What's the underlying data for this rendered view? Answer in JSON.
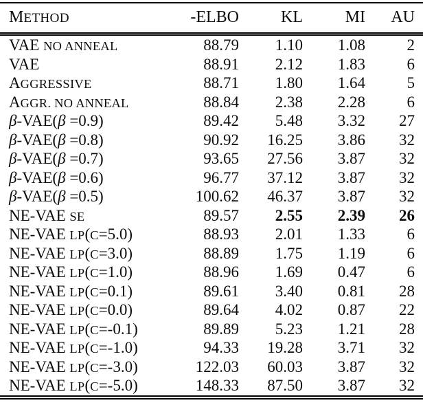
{
  "colors": {
    "text": "#0d0d0d",
    "rule": "#000000",
    "background": "#ffffff"
  },
  "table": {
    "columns": [
      {
        "key": "method",
        "align": "left",
        "label_segments": [
          {
            "t": "M",
            "s": "p"
          },
          {
            "t": "ETHOD",
            "s": "sc"
          }
        ]
      },
      {
        "key": "elbo",
        "label": "-ELBO",
        "align": "right"
      },
      {
        "key": "kl",
        "label": "KL",
        "align": "right"
      },
      {
        "key": "mi",
        "label": "MI",
        "align": "right"
      },
      {
        "key": "au",
        "label": "AU",
        "align": "right"
      }
    ],
    "rows": [
      {
        "method": [
          {
            "t": "VAE ",
            "s": "p"
          },
          {
            "t": "NO ANNEAL",
            "s": "sc"
          }
        ],
        "elbo": "88.79",
        "kl": "1.10",
        "mi": "1.08",
        "au": "2",
        "bold": []
      },
      {
        "method": [
          {
            "t": "VAE",
            "s": "p"
          }
        ],
        "elbo": "88.91",
        "kl": "2.12",
        "mi": "1.83",
        "au": "6",
        "bold": []
      },
      {
        "method": [
          {
            "t": "A",
            "s": "p"
          },
          {
            "t": "GGRESSIVE",
            "s": "sc"
          }
        ],
        "elbo": "88.71",
        "kl": "1.80",
        "mi": "1.64",
        "au": "5",
        "bold": []
      },
      {
        "method": [
          {
            "t": "A",
            "s": "p"
          },
          {
            "t": "GGR. NO ANNEAL",
            "s": "sc"
          }
        ],
        "elbo": "88.84",
        "kl": "2.38",
        "mi": "2.28",
        "au": "6",
        "bold": []
      },
      {
        "method": [
          {
            "t": "β",
            "s": "it"
          },
          {
            "t": "-VAE(",
            "s": "p"
          },
          {
            "t": "β",
            "s": "it"
          },
          {
            "t": " =0.9)",
            "s": "p"
          }
        ],
        "elbo": "89.42",
        "kl": "5.48",
        "mi": "3.32",
        "au": "27",
        "bold": []
      },
      {
        "method": [
          {
            "t": "β",
            "s": "it"
          },
          {
            "t": "-VAE(",
            "s": "p"
          },
          {
            "t": "β",
            "s": "it"
          },
          {
            "t": " =0.8)",
            "s": "p"
          }
        ],
        "elbo": "90.92",
        "kl": "16.25",
        "mi": "3.86",
        "au": "32",
        "bold": []
      },
      {
        "method": [
          {
            "t": "β",
            "s": "it"
          },
          {
            "t": "-VAE(",
            "s": "p"
          },
          {
            "t": "β",
            "s": "it"
          },
          {
            "t": " =0.7)",
            "s": "p"
          }
        ],
        "elbo": "93.65",
        "kl": "27.56",
        "mi": "3.87",
        "au": "32",
        "bold": []
      },
      {
        "method": [
          {
            "t": "β",
            "s": "it"
          },
          {
            "t": "-VAE(",
            "s": "p"
          },
          {
            "t": "β",
            "s": "it"
          },
          {
            "t": " =0.6)",
            "s": "p"
          }
        ],
        "elbo": "96.77",
        "kl": "37.12",
        "mi": "3.87",
        "au": "32",
        "bold": []
      },
      {
        "method": [
          {
            "t": "β",
            "s": "it"
          },
          {
            "t": "-VAE(",
            "s": "p"
          },
          {
            "t": "β",
            "s": "it"
          },
          {
            "t": " =0.5)",
            "s": "p"
          }
        ],
        "elbo": "100.62",
        "kl": "46.37",
        "mi": "3.87",
        "au": "32",
        "bold": []
      },
      {
        "method": [
          {
            "t": "NE-VAE ",
            "s": "p"
          },
          {
            "t": "SE",
            "s": "sc"
          }
        ],
        "elbo": "89.57",
        "kl": "2.55",
        "mi": "2.39",
        "au": "26",
        "bold": [
          "kl",
          "mi",
          "au"
        ]
      },
      {
        "method": [
          {
            "t": "NE-VAE ",
            "s": "p"
          },
          {
            "t": "LP",
            "s": "sc"
          },
          {
            "t": "(",
            "s": "p"
          },
          {
            "t": "C",
            "s": "sc"
          },
          {
            "t": "=5.0)",
            "s": "p"
          }
        ],
        "elbo": "88.93",
        "kl": "2.01",
        "mi": "1.33",
        "au": "6",
        "bold": []
      },
      {
        "method": [
          {
            "t": "NE-VAE ",
            "s": "p"
          },
          {
            "t": "LP",
            "s": "sc"
          },
          {
            "t": "(",
            "s": "p"
          },
          {
            "t": "C",
            "s": "sc"
          },
          {
            "t": "=3.0)",
            "s": "p"
          }
        ],
        "elbo": "88.89",
        "kl": "1.75",
        "mi": "1.19",
        "au": "6",
        "bold": []
      },
      {
        "method": [
          {
            "t": "NE-VAE ",
            "s": "p"
          },
          {
            "t": "LP",
            "s": "sc"
          },
          {
            "t": "(",
            "s": "p"
          },
          {
            "t": "C",
            "s": "sc"
          },
          {
            "t": "=1.0)",
            "s": "p"
          }
        ],
        "elbo": "88.96",
        "kl": "1.69",
        "mi": "0.47",
        "au": "6",
        "bold": []
      },
      {
        "method": [
          {
            "t": "NE-VAE ",
            "s": "p"
          },
          {
            "t": "LP",
            "s": "sc"
          },
          {
            "t": "(",
            "s": "p"
          },
          {
            "t": "C",
            "s": "sc"
          },
          {
            "t": "=0.1)",
            "s": "p"
          }
        ],
        "elbo": "89.61",
        "kl": "3.40",
        "mi": "0.81",
        "au": "28",
        "bold": []
      },
      {
        "method": [
          {
            "t": "NE-VAE ",
            "s": "p"
          },
          {
            "t": "LP",
            "s": "sc"
          },
          {
            "t": "(",
            "s": "p"
          },
          {
            "t": "C",
            "s": "sc"
          },
          {
            "t": "=0.0)",
            "s": "p"
          }
        ],
        "elbo": "89.64",
        "kl": "4.02",
        "mi": "0.87",
        "au": "22",
        "bold": []
      },
      {
        "method": [
          {
            "t": "NE-VAE ",
            "s": "p"
          },
          {
            "t": "LP",
            "s": "sc"
          },
          {
            "t": "(",
            "s": "p"
          },
          {
            "t": "C",
            "s": "sc"
          },
          {
            "t": "=-0.1)",
            "s": "p"
          }
        ],
        "elbo": "89.89",
        "kl": "5.23",
        "mi": "1.21",
        "au": "28",
        "bold": []
      },
      {
        "method": [
          {
            "t": "NE-VAE ",
            "s": "p"
          },
          {
            "t": "LP",
            "s": "sc"
          },
          {
            "t": "(",
            "s": "p"
          },
          {
            "t": "C",
            "s": "sc"
          },
          {
            "t": "=-1.0)",
            "s": "p"
          }
        ],
        "elbo": "94.33",
        "kl": "19.28",
        "mi": "3.71",
        "au": "32",
        "bold": []
      },
      {
        "method": [
          {
            "t": "NE-VAE ",
            "s": "p"
          },
          {
            "t": "LP",
            "s": "sc"
          },
          {
            "t": "(",
            "s": "p"
          },
          {
            "t": "C",
            "s": "sc"
          },
          {
            "t": "=-3.0)",
            "s": "p"
          }
        ],
        "elbo": "122.03",
        "kl": "60.03",
        "mi": "3.87",
        "au": "32",
        "bold": []
      },
      {
        "method": [
          {
            "t": "NE-VAE ",
            "s": "p"
          },
          {
            "t": "LP",
            "s": "sc"
          },
          {
            "t": "(",
            "s": "p"
          },
          {
            "t": "C",
            "s": "sc"
          },
          {
            "t": "=-5.0)",
            "s": "p"
          }
        ],
        "elbo": "148.33",
        "kl": "87.50",
        "mi": "3.87",
        "au": "32",
        "bold": []
      }
    ]
  }
}
